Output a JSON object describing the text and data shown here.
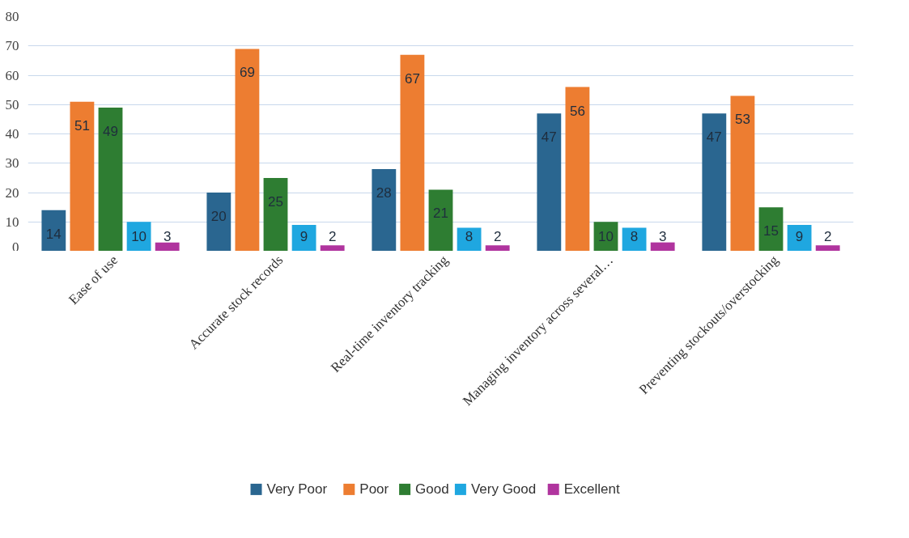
{
  "chart_data": {
    "type": "bar",
    "categories": [
      "Ease of use",
      "Accurate stock records",
      "Real-time inventory tracking",
      "Managing inventory across several…",
      "Preventing stockouts/overstocking"
    ],
    "series": [
      {
        "name": "Very Poor",
        "color": "#2a6690",
        "values": [
          14,
          20,
          28,
          47,
          47
        ]
      },
      {
        "name": "Poor",
        "color": "#ed7d31",
        "values": [
          51,
          69,
          67,
          56,
          53
        ]
      },
      {
        "name": "Good",
        "color": "#2e7d32",
        "values": [
          49,
          25,
          21,
          10,
          15
        ]
      },
      {
        "name": "Very Good",
        "color": "#1fa7e0",
        "values": [
          10,
          9,
          8,
          8,
          9
        ]
      },
      {
        "name": "Excellent",
        "color": "#b0349e",
        "values": [
          3,
          2,
          2,
          3,
          2
        ]
      }
    ],
    "ylim": [
      0,
      80
    ],
    "yticks": [
      0,
      10,
      20,
      30,
      40,
      50,
      60,
      70,
      80
    ],
    "grid": "y",
    "legend": "bottom",
    "data_labels": true
  }
}
